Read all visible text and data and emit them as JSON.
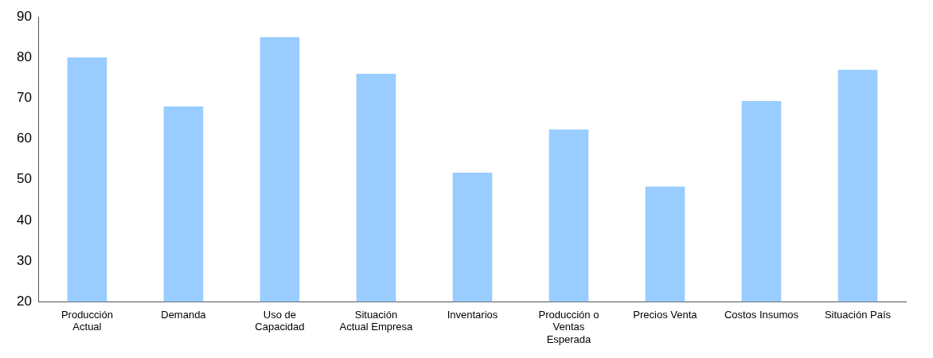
{
  "chart_data": {
    "type": "bar",
    "categories": [
      "Producción Actual",
      "Demanda",
      "Uso de Capacidad",
      "Situación Actual Empresa",
      "Inventarios",
      "Producción o Ventas Esperada",
      "Precios Venta",
      "Costos Insumos",
      "Situación País"
    ],
    "values": [
      80,
      68,
      85,
      76,
      51.7,
      62.3,
      48.3,
      69.3,
      77
    ],
    "color": "#99ccff",
    "ylim": [
      20,
      90
    ],
    "yticks": [
      20,
      30,
      40,
      50,
      60,
      70,
      80,
      90
    ],
    "grid": false,
    "legend": false
  }
}
